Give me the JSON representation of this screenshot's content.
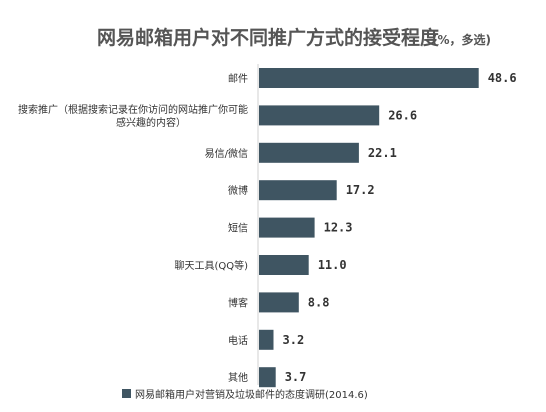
{
  "chart_data": {
    "type": "bar",
    "orientation": "horizontal",
    "title": "网易邮箱用户对不同推广方式的接受程度",
    "title_unit": "(%，多选)",
    "categories": [
      [
        "邮件"
      ],
      [
        "搜索推广（根据搜索记录在你访问的网站推广你可能",
        "感兴趣的内容）"
      ],
      [
        "易信/微信"
      ],
      [
        "微博"
      ],
      [
        "短信"
      ],
      [
        "聊天工具(QQ等)"
      ],
      [
        "博客"
      ],
      [
        "电话"
      ],
      [
        "其他"
      ]
    ],
    "series": [
      {
        "name": "网易邮箱用户对营销及垃圾邮件的态度调研(2014.6)",
        "values": [
          48.6,
          26.6,
          22.1,
          17.2,
          12.3,
          11.0,
          8.8,
          3.2,
          3.7
        ],
        "value_labels": [
          "48.6",
          "26.6",
          "22.1",
          "17.2",
          "12.3",
          "11.0",
          "8.8",
          "3.2",
          "3.7"
        ]
      }
    ],
    "xlim": [
      0,
      50
    ],
    "grid": false,
    "legend_position": "bottom",
    "bar_color": "#3f5562"
  }
}
